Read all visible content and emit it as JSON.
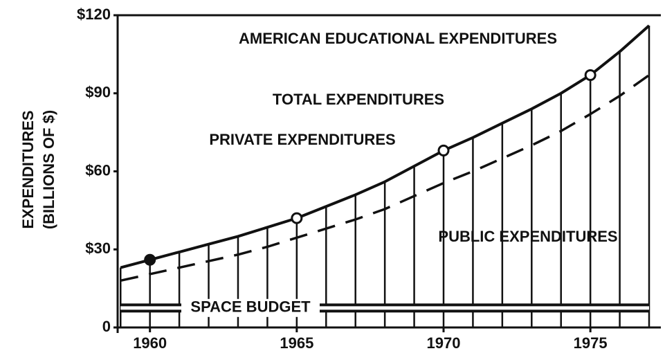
{
  "chart_data": {
    "type": "line",
    "title": "AMERICAN EDUCATIONAL EXPENDITURES",
    "y_label_lines": [
      "EXPENDITURES",
      "(BILLIONS OF $)"
    ],
    "annotations": [
      "PRIVATE EXPENDITURES"
    ],
    "x": [
      1959,
      1960,
      1961,
      1962,
      1963,
      1964,
      1965,
      1966,
      1967,
      1968,
      1969,
      1970,
      1971,
      1972,
      1973,
      1974,
      1975,
      1976,
      1977
    ],
    "series": [
      {
        "name": "TOTAL EXPENDITURES",
        "color": "#111111",
        "style": "solid",
        "hatch": true,
        "values": [
          23,
          26,
          29,
          32,
          35,
          38.5,
          42,
          46.5,
          51,
          56,
          62,
          68,
          73,
          78.5,
          84,
          90,
          97,
          106,
          116
        ]
      },
      {
        "name": "PUBLIC EXPENDITURES",
        "color": "#111111",
        "style": "dashed",
        "values": [
          18,
          20.5,
          23,
          25.5,
          28,
          31,
          34.5,
          38,
          41.5,
          45.5,
          50.5,
          55.5,
          60,
          65,
          70,
          75.5,
          82,
          89,
          97
        ]
      },
      {
        "name": "SPACE BUDGET",
        "color": "#111111",
        "style": "band",
        "values": [
          7.5,
          7.5,
          7.5,
          7.5,
          7.5,
          7.5,
          7.5,
          7.5,
          7.5,
          7.5,
          7.5,
          7.5,
          7.5,
          7.5,
          7.5,
          7.5,
          7.5,
          7.5,
          7.5
        ]
      }
    ],
    "markers": [
      {
        "x": 1960,
        "filled": true
      },
      {
        "x": 1965,
        "filled": false
      },
      {
        "x": 1970,
        "filled": false
      },
      {
        "x": 1975,
        "filled": false
      }
    ],
    "xlim": [
      1958.9,
      1977.4
    ],
    "xticks": [
      1960,
      1965,
      1970,
      1975
    ],
    "ylim": [
      0,
      120
    ],
    "yticks": [
      0,
      {
        "value": 30,
        "label": "$30"
      },
      {
        "value": 60,
        "label": "$60"
      },
      {
        "value": 90,
        "label": "$90"
      },
      {
        "value": 120,
        "label": "$120"
      }
    ]
  }
}
